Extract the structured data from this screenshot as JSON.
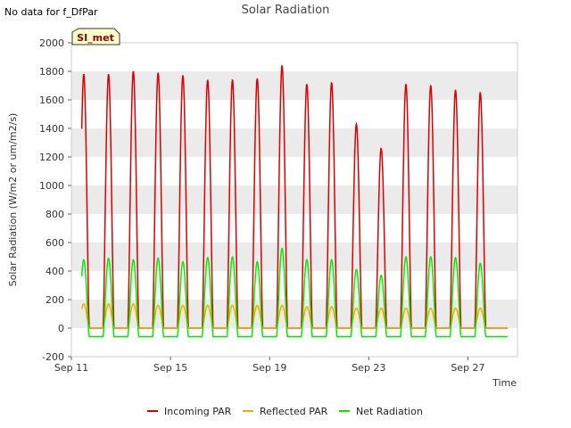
{
  "note": "No data for f_DfPar",
  "badge": "SI_met",
  "colors": {
    "incoming": "#dd0000",
    "reflected": "#ffa500",
    "net": "#00ee00",
    "band": "#ebebeb",
    "badge_bg": "#ffffcc"
  },
  "chart_data": {
    "type": "line",
    "title": "Solar Radiation",
    "xlabel": "Time",
    "ylabel": "Solar Radiation (W/m2 or um/m2/s)",
    "xlim": [
      "Sep 11",
      "Sep 29"
    ],
    "ylim": [
      -200,
      2000
    ],
    "x_ticks": [
      "Sep 11",
      "Sep 15",
      "Sep 19",
      "Sep 23",
      "Sep 27"
    ],
    "y_ticks": [
      -200,
      0,
      200,
      400,
      600,
      800,
      1000,
      1200,
      1400,
      1600,
      1800,
      2000
    ],
    "legend_position": "bottom",
    "days": [
      "Sep 11",
      "Sep 12",
      "Sep 13",
      "Sep 14",
      "Sep 15",
      "Sep 16",
      "Sep 17",
      "Sep 18",
      "Sep 19",
      "Sep 20",
      "Sep 21",
      "Sep 22",
      "Sep 23",
      "Sep 24",
      "Sep 25",
      "Sep 26",
      "Sep 27",
      "Sep 28"
    ],
    "series": [
      {
        "name": "Incoming PAR",
        "daily_peak": [
          1780,
          1780,
          1800,
          1790,
          1770,
          1740,
          1740,
          1750,
          1840,
          1710,
          1720,
          1430,
          1260,
          1710,
          1700,
          1670,
          1650,
          0
        ],
        "night": 0
      },
      {
        "name": "Reflected PAR",
        "daily_peak": [
          170,
          170,
          170,
          160,
          160,
          160,
          160,
          160,
          160,
          150,
          150,
          140,
          140,
          140,
          140,
          140,
          140,
          0
        ],
        "night": 0
      },
      {
        "name": "Net Radiation",
        "daily_peak": [
          480,
          490,
          480,
          490,
          465,
          495,
          500,
          465,
          560,
          480,
          480,
          410,
          370,
          500,
          500,
          495,
          455,
          0
        ],
        "night": -60
      }
    ]
  }
}
